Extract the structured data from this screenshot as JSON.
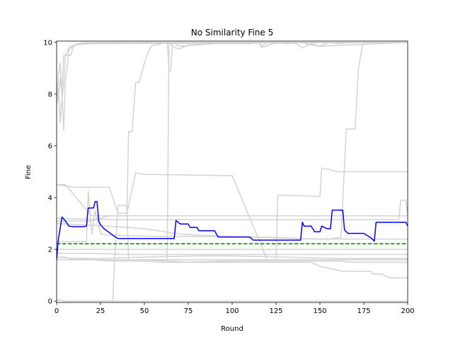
{
  "chart_data": {
    "type": "line",
    "title": "No Similarity Fine 5",
    "xlabel": "Round",
    "ylabel": "Fine",
    "xlim": [
      0,
      200
    ],
    "ylim": [
      -0.05,
      10.05
    ],
    "xticks": [
      0,
      25,
      50,
      75,
      100,
      125,
      150,
      175,
      200
    ],
    "yticks": [
      0,
      2,
      4,
      6,
      8,
      10
    ],
    "grid": false,
    "legend": "none",
    "colors": {
      "background_runs": "#d3d3d3",
      "mean": "#0000ff",
      "reference": "#008000"
    },
    "reference_line": {
      "y": 2.22,
      "style": "dashed"
    },
    "mean_series": {
      "x": [
        0,
        1,
        2,
        3,
        5,
        7,
        10,
        15,
        17,
        18,
        21,
        22,
        23,
        24,
        25,
        27,
        29,
        31,
        33,
        35,
        40,
        50,
        60,
        67,
        68,
        70,
        71,
        75,
        76,
        80,
        81,
        85,
        90,
        92,
        95,
        100,
        110,
        112,
        115,
        120,
        130,
        139,
        140,
        141,
        145,
        147,
        150,
        151,
        154,
        156,
        157,
        163,
        164,
        166,
        170,
        175,
        179,
        181,
        182,
        183,
        190,
        199,
        200
      ],
      "y": [
        1.6,
        2.4,
        2.8,
        3.25,
        3.1,
        2.9,
        2.88,
        2.88,
        2.9,
        3.6,
        3.6,
        3.85,
        3.85,
        3.1,
        2.95,
        2.8,
        2.7,
        2.6,
        2.5,
        2.42,
        2.42,
        2.42,
        2.42,
        2.42,
        3.12,
        3.0,
        2.98,
        2.98,
        2.85,
        2.85,
        2.72,
        2.72,
        2.72,
        2.48,
        2.48,
        2.48,
        2.48,
        2.36,
        2.36,
        2.36,
        2.36,
        2.36,
        3.05,
        2.9,
        2.9,
        2.68,
        2.68,
        2.9,
        2.8,
        2.8,
        3.52,
        3.52,
        2.75,
        2.62,
        2.62,
        2.62,
        2.45,
        2.32,
        3.05,
        3.05,
        3.05,
        3.05,
        2.9
      ]
    },
    "background_runs": [
      {
        "x": [
          0,
          1,
          2,
          3,
          4,
          5,
          8,
          10,
          12,
          15,
          20,
          30,
          200
        ],
        "y": [
          7.8,
          8.7,
          9.2,
          8.0,
          9.5,
          9.5,
          9.5,
          9.9,
          9.95,
          10.0,
          10.0,
          10.0,
          10.0
        ]
      },
      {
        "x": [
          0,
          1,
          2,
          3,
          4,
          5,
          6,
          7,
          10,
          15,
          200
        ],
        "y": [
          7.6,
          7.9,
          8.6,
          8.1,
          6.6,
          8.5,
          9.0,
          9.7,
          9.9,
          9.95,
          10.0
        ]
      },
      {
        "x": [
          0,
          1,
          2,
          3,
          4,
          5,
          7,
          10,
          20,
          100,
          200
        ],
        "y": [
          7.8,
          8.2,
          6.9,
          7.8,
          8.3,
          9.5,
          9.8,
          9.9,
          9.95,
          10.0,
          10.0
        ]
      },
      {
        "x": [
          0,
          2,
          4,
          5,
          200
        ],
        "y": [
          0.05,
          0.05,
          0.0,
          0.0,
          0.0
        ]
      },
      {
        "x": [
          0,
          5,
          32,
          33,
          35,
          40,
          41,
          200
        ],
        "y": [
          0.05,
          0.0,
          0.0,
          1.6,
          3.7,
          3.7,
          1.6,
          1.6
        ]
      },
      {
        "x": [
          0,
          3,
          5,
          20,
          35,
          40,
          41,
          43,
          45,
          47,
          50,
          52,
          54,
          55,
          57,
          60,
          63,
          64,
          65,
          66,
          70,
          80,
          90,
          100,
          110,
          115,
          117,
          120,
          125,
          128,
          130,
          140,
          145,
          150,
          200
        ],
        "y": [
          4.5,
          4.5,
          4.5,
          3.3,
          3.3,
          3.3,
          6.55,
          6.55,
          8.45,
          8.45,
          9.2,
          9.6,
          9.85,
          9.9,
          9.9,
          9.95,
          10.0,
          8.9,
          8.9,
          10.0,
          9.85,
          9.9,
          9.95,
          9.95,
          9.95,
          10.0,
          9.85,
          10.0,
          9.95,
          10.0,
          9.95,
          10.0,
          9.9,
          9.85,
          10.0
        ]
      },
      {
        "x": [
          0,
          5,
          10,
          20,
          30,
          40,
          63,
          64,
          67,
          70,
          75,
          90,
          100,
          115,
          117,
          125,
          130,
          135,
          140,
          145,
          150,
          155,
          160,
          170,
          200
        ],
        "y": [
          1.7,
          1.7,
          1.6,
          1.6,
          1.6,
          1.6,
          1.6,
          10.0,
          9.8,
          9.75,
          9.9,
          9.95,
          10.0,
          10.0,
          9.8,
          10.0,
          9.95,
          10.0,
          9.8,
          9.95,
          9.85,
          10.0,
          9.95,
          10.0,
          10.0
        ]
      },
      {
        "x": [
          0,
          15,
          17,
          18,
          20,
          22,
          25,
          30,
          60,
          80,
          100,
          120,
          150,
          155,
          160,
          162,
          165,
          166,
          170,
          172,
          174,
          175,
          178,
          185,
          200
        ],
        "y": [
          2.3,
          2.3,
          2.3,
          4.25,
          2.6,
          3.5,
          2.6,
          2.55,
          2.5,
          2.5,
          2.5,
          2.45,
          2.4,
          2.4,
          2.45,
          2.45,
          6.65,
          6.65,
          6.65,
          9.0,
          9.8,
          10.0,
          10.0,
          10.0,
          10.0
        ]
      },
      {
        "x": [
          0,
          10,
          30,
          35,
          40,
          45,
          50,
          100,
          120,
          125,
          126,
          150,
          151,
          153,
          155,
          157,
          158,
          160,
          200
        ],
        "y": [
          4.5,
          4.4,
          4.4,
          3.4,
          3.4,
          4.95,
          4.9,
          4.85,
          1.6,
          1.6,
          4.1,
          4.05,
          5.15,
          5.1,
          5.1,
          5.05,
          5.05,
          5.0,
          5.0
        ]
      },
      {
        "x": [
          0,
          20,
          30,
          40,
          60,
          80,
          100,
          140,
          160,
          180,
          195,
          200
        ],
        "y": [
          3.1,
          3.1,
          3.3,
          3.3,
          3.3,
          3.3,
          3.3,
          3.3,
          3.3,
          3.3,
          3.3,
          3.3
        ]
      },
      {
        "x": [
          0,
          30,
          60,
          90,
          120,
          150,
          180,
          195,
          196,
          199,
          200
        ],
        "y": [
          3.2,
          3.15,
          3.15,
          3.15,
          3.15,
          3.15,
          3.15,
          3.15,
          3.9,
          3.9,
          3.3
        ]
      },
      {
        "x": [
          0,
          20,
          40,
          60,
          80,
          100,
          120,
          140,
          160,
          180,
          200
        ],
        "y": [
          2.0,
          2.0,
          2.0,
          2.0,
          2.0,
          2.0,
          2.0,
          2.0,
          2.0,
          2.0,
          2.0
        ]
      },
      {
        "x": [
          0,
          20,
          40,
          60,
          80,
          100,
          120,
          140,
          160,
          180,
          200
        ],
        "y": [
          1.85,
          1.85,
          1.8,
          1.8,
          1.8,
          1.8,
          1.8,
          1.8,
          1.8,
          1.8,
          1.8
        ]
      },
      {
        "x": [
          0,
          10,
          25,
          50,
          80,
          100,
          130,
          160,
          200
        ],
        "y": [
          1.7,
          1.65,
          1.65,
          1.7,
          1.75,
          1.75,
          1.7,
          1.65,
          1.65
        ]
      },
      {
        "x": [
          0,
          10,
          30,
          50,
          60,
          70,
          100,
          160,
          170,
          200
        ],
        "y": [
          1.7,
          1.65,
          1.55,
          1.55,
          1.5,
          1.5,
          1.55,
          1.55,
          1.5,
          1.5
        ]
      },
      {
        "x": [
          0,
          20,
          40,
          60,
          80,
          100,
          140,
          170,
          200
        ],
        "y": [
          1.6,
          1.6,
          1.6,
          1.6,
          1.6,
          1.6,
          1.6,
          1.6,
          1.6
        ]
      },
      {
        "x": [
          0,
          25,
          50,
          75,
          100,
          125,
          145,
          150,
          163,
          178,
          179,
          180,
          185,
          190,
          200
        ],
        "y": [
          1.6,
          1.6,
          1.6,
          1.5,
          1.5,
          1.5,
          1.5,
          1.35,
          1.15,
          1.15,
          1.15,
          1.05,
          1.05,
          0.9,
          0.9
        ]
      },
      {
        "x": [
          0,
          30,
          40,
          50,
          60,
          70,
          80,
          100,
          130,
          145,
          150,
          200
        ],
        "y": [
          3.0,
          2.9,
          2.85,
          2.8,
          2.7,
          2.6,
          2.55,
          2.5,
          2.45,
          2.4,
          2.4,
          2.4
        ]
      }
    ]
  }
}
